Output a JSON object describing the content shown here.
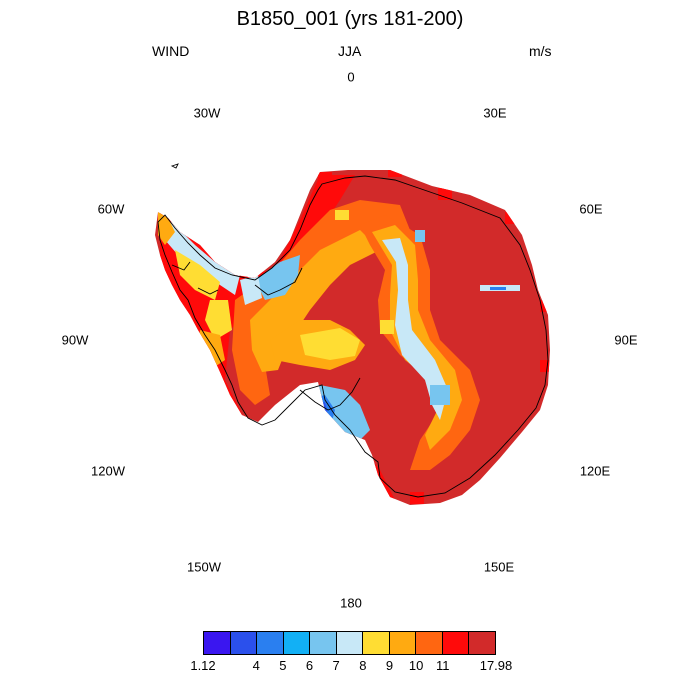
{
  "header": {
    "title": "B1850_001 (yrs 181-200)",
    "left_label": "WIND",
    "center_label": "JJA",
    "right_label": "m/s"
  },
  "longitude_labels": {
    "lon_0": "0",
    "lon_30e": "30E",
    "lon_60e": "60E",
    "lon_90e": "90E",
    "lon_120e": "120E",
    "lon_150e": "150E",
    "lon_180": "180",
    "lon_150w": "150W",
    "lon_120w": "120W",
    "lon_90w": "90W",
    "lon_60w": "60W",
    "lon_30w": "30W"
  },
  "colorbar": {
    "colors": [
      "#3a16f0",
      "#2b50ec",
      "#2a7ff0",
      "#12b0f5",
      "#77c5ef",
      "#c8e8f7",
      "#ffdd33",
      "#ffaa11",
      "#ff6611",
      "#ff0a0a",
      "#d22a2a"
    ],
    "labels": [
      "1.12",
      "4",
      "5",
      "6",
      "7",
      "8",
      "9",
      "10",
      "11",
      "17.98"
    ]
  },
  "map_data": {
    "projection": "south polar stereographic",
    "variable": "WIND",
    "units": "m/s",
    "season": "JJA",
    "min": 1.12,
    "max": 17.98
  }
}
